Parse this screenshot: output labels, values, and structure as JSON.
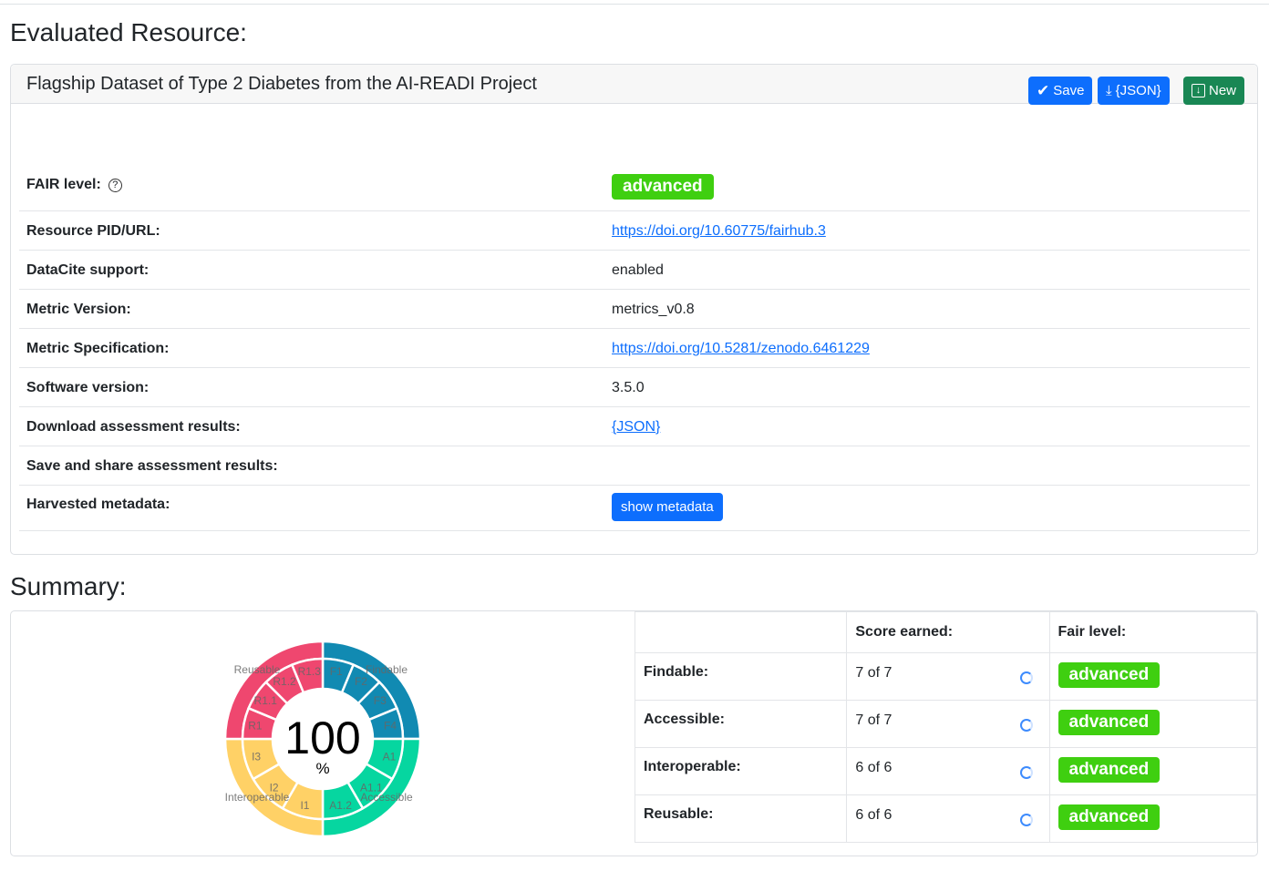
{
  "evaluated_heading": "Evaluated Resource:",
  "resource": {
    "title": "Flagship Dataset of Type 2 Diabetes from the AI-READI Project",
    "buttons": {
      "save": "Save",
      "json": "{JSON}",
      "new": "New"
    },
    "fair_level_label": "FAIR level:",
    "fair_level_help": "?",
    "fair_level": "advanced",
    "rows": [
      {
        "label": "Resource PID/URL:",
        "value": "https://doi.org/10.60775/fairhub.3",
        "link": true
      },
      {
        "label": "DataCite support:",
        "value": "enabled"
      },
      {
        "label": "Metric Version:",
        "value": "metrics_v0.8"
      },
      {
        "label": "Metric Specification:",
        "value": "https://doi.org/10.5281/zenodo.6461229",
        "link": true
      },
      {
        "label": "Software version:",
        "value": "3.5.0"
      },
      {
        "label": "Download assessment results:",
        "value": "{JSON}",
        "link": true
      },
      {
        "label": "Save and share assessment results:",
        "value": ""
      }
    ],
    "harvested_label": "Harvested metadata:",
    "show_metadata": "show metadata"
  },
  "summary_heading": "Summary:",
  "summary_table": {
    "headers": [
      "",
      "Score earned:",
      "Fair level:"
    ],
    "rows": [
      {
        "name": "Findable:",
        "score": "7 of 7",
        "level": "advanced"
      },
      {
        "name": "Accessible:",
        "score": "7 of 7",
        "level": "advanced"
      },
      {
        "name": "Interoperable:",
        "score": "6 of 6",
        "level": "advanced"
      },
      {
        "name": "Reusable:",
        "score": "6 of 6",
        "level": "advanced"
      }
    ]
  },
  "chart_data": {
    "type": "sunburst",
    "center_value": "100",
    "center_unit": "%",
    "groups": [
      {
        "name": "Findable",
        "color": "#118ab2",
        "children": [
          "F1",
          "F2",
          "F3",
          "F4"
        ]
      },
      {
        "name": "Accessible",
        "color": "#06d6a0",
        "children": [
          "A1",
          "A1.1",
          "A1.2"
        ]
      },
      {
        "name": "Interoperable",
        "color": "#ffd166",
        "children": [
          "I1",
          "I2",
          "I3"
        ]
      },
      {
        "name": "Reusable",
        "color": "#ef476f",
        "children": [
          "R1",
          "R1.1",
          "R1.2",
          "R1.3"
        ]
      }
    ]
  }
}
